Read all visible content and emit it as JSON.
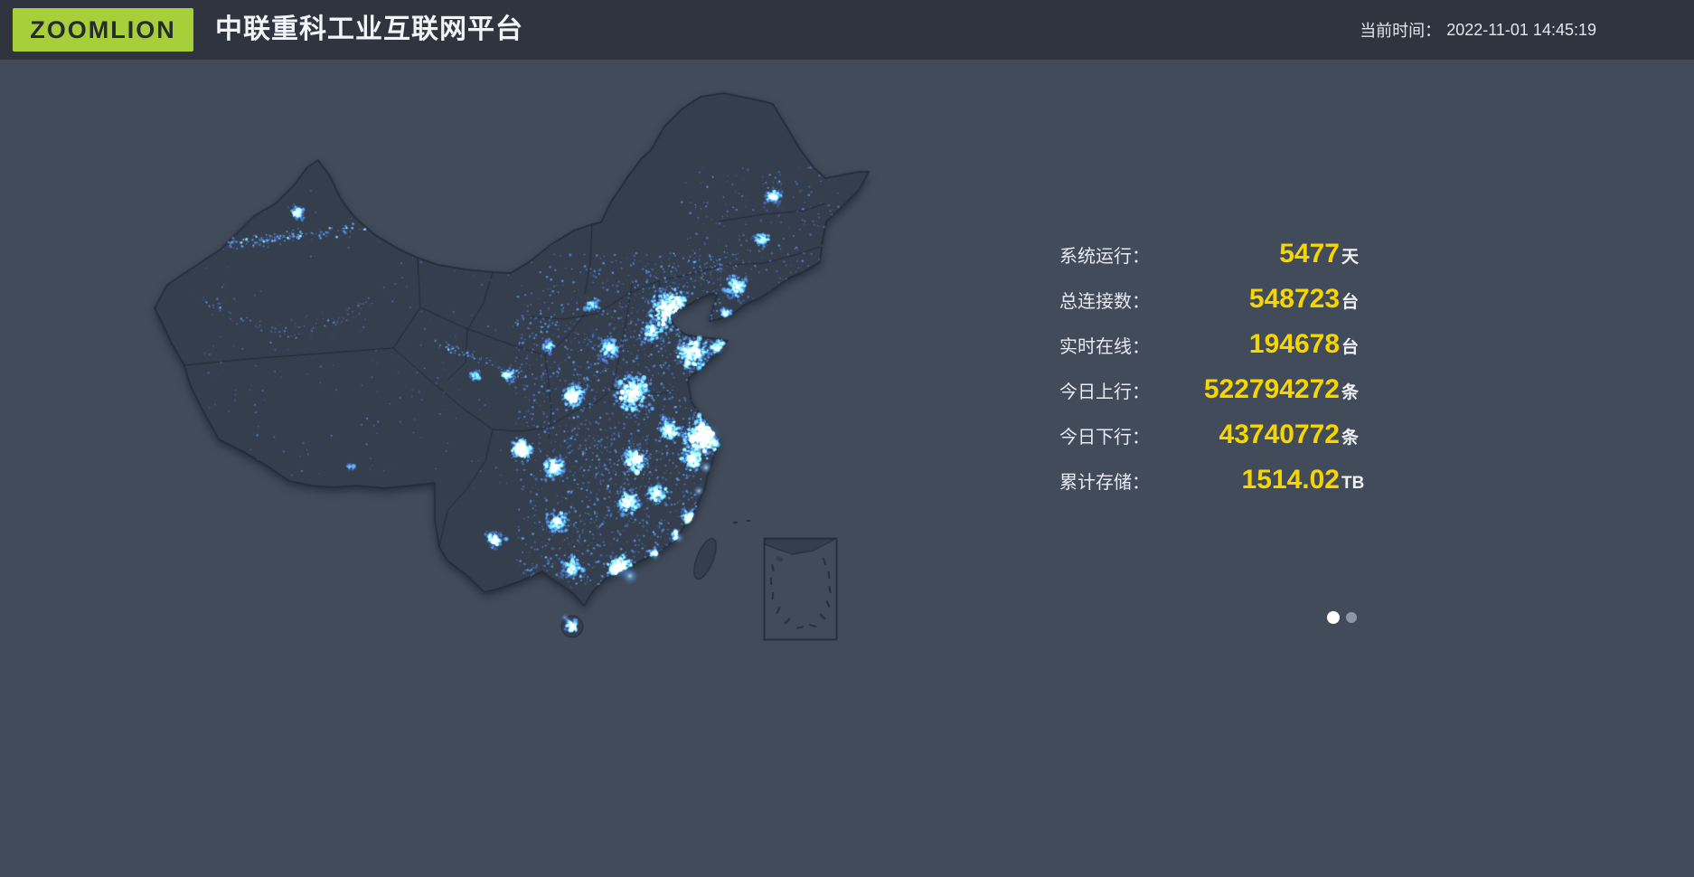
{
  "header": {
    "logo_text": "ZOOMLION",
    "title": "中联重科工业互联网平台",
    "time_label": "当前时间：",
    "time_value": "2022-11-01 14:45:19"
  },
  "stats": {
    "rows": [
      {
        "label": "系统运行：",
        "value": "5477",
        "unit": "天"
      },
      {
        "label": "总连接数：",
        "value": "548723",
        "unit": "台"
      },
      {
        "label": "实时在线：",
        "value": "194678",
        "unit": "台"
      },
      {
        "label": "今日上行：",
        "value": "522794272",
        "unit": "条"
      },
      {
        "label": "今日下行：",
        "value": "43740772",
        "unit": "条"
      },
      {
        "label": "累计存储：",
        "value": "1514.02",
        "unit": "TB"
      }
    ]
  },
  "carousel": {
    "page_count": 2,
    "active_index": 0
  },
  "colors": {
    "brand_green": "#a6cf39",
    "header_bg": "#30343e",
    "body_bg": "#414b5a",
    "map_land": "#353e4c",
    "map_border": "#232b38",
    "stat_label": "#e8ebf1",
    "stat_value": "#f7d600",
    "dot_blue": "#2f7fe0",
    "dot_cyan": "#6fd3ff",
    "pager_active": "#ffffff",
    "pager_inactive": "#8d96a3"
  }
}
